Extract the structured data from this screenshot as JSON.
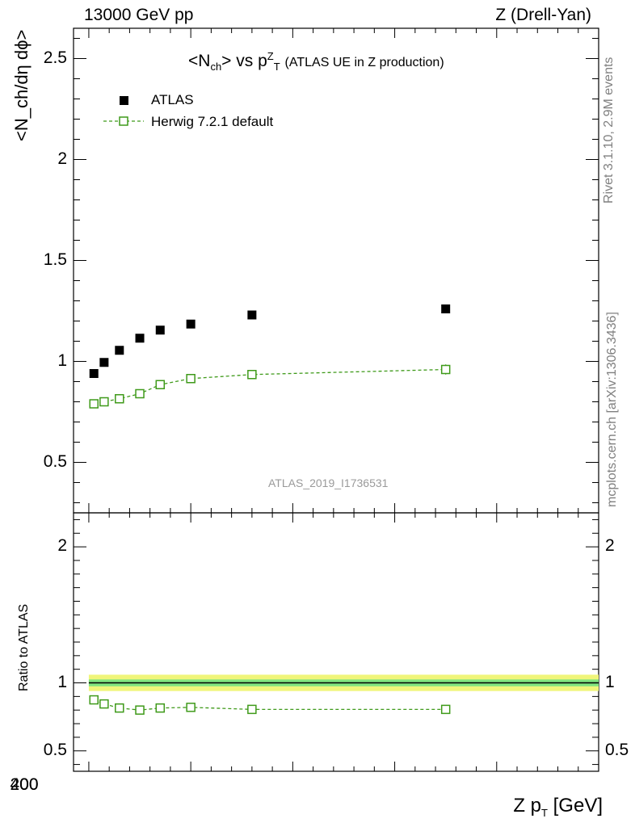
{
  "header": {
    "left": "13000 GeV pp",
    "right": "Z (Drell-Yan)"
  },
  "side_text": {
    "rivet": "Rivet 3.1.10,  2.9M events",
    "mcplots": "mcplots.cern.ch [arXiv:1306.3436]"
  },
  "chart_data": {
    "type": "scatter",
    "title_main": "<N",
    "title_sub1": "ch",
    "title_mid": "> vs p",
    "title_sup": "Z",
    "title_sub2": "T",
    "title_extra": "(ATLAS UE in Z production)",
    "reference_label": "ATLAS_2019_I1736531",
    "ylabel_top": "<N_ch/dη dϕ>",
    "ylabel_bottom": "Ratio to ATLAS",
    "xlabel_main": "Z p",
    "xlabel_sub": "T",
    "xlabel_unit": "[GeV]",
    "xlim": [
      -15,
      500
    ],
    "ylim_top": [
      0.25,
      2.65
    ],
    "ylim_bottom": [
      0.35,
      2.25
    ],
    "x_ticks": [
      "0",
      "200",
      "400"
    ],
    "y_ticks_top": [
      "0.5",
      "1",
      "1.5",
      "2",
      "2.5"
    ],
    "y_ticks_bottom": [
      "0.5",
      "1",
      "2"
    ],
    "legend": {
      "atlas": "ATLAS",
      "mc": "Herwig 7.2.1 default"
    },
    "colors": {
      "data": "#000000",
      "mc": "#3f9a1a",
      "band_outer": "#f0f57a",
      "band_inner": "#7fe47f"
    },
    "series": [
      {
        "name": "ATLAS",
        "x": [
          5,
          15,
          30,
          50,
          70,
          100,
          160,
          350
        ],
        "y": [
          0.94,
          0.995,
          1.055,
          1.115,
          1.155,
          1.185,
          1.23,
          1.26
        ]
      },
      {
        "name": "Herwig 7.2.1 default",
        "x": [
          5,
          15,
          30,
          50,
          70,
          100,
          160,
          350
        ],
        "y": [
          0.79,
          0.8,
          0.815,
          0.84,
          0.885,
          0.915,
          0.935,
          0.96
        ],
        "yerr": [
          0.008,
          0.008,
          0.008,
          0.008,
          0.008,
          0.01,
          0.01,
          0.025
        ]
      },
      {
        "name": "ratio",
        "x": [
          5,
          15,
          30,
          50,
          70,
          100,
          160,
          350
        ],
        "y": [
          0.875,
          0.845,
          0.815,
          0.8,
          0.815,
          0.82,
          0.805,
          0.805
        ]
      }
    ]
  }
}
